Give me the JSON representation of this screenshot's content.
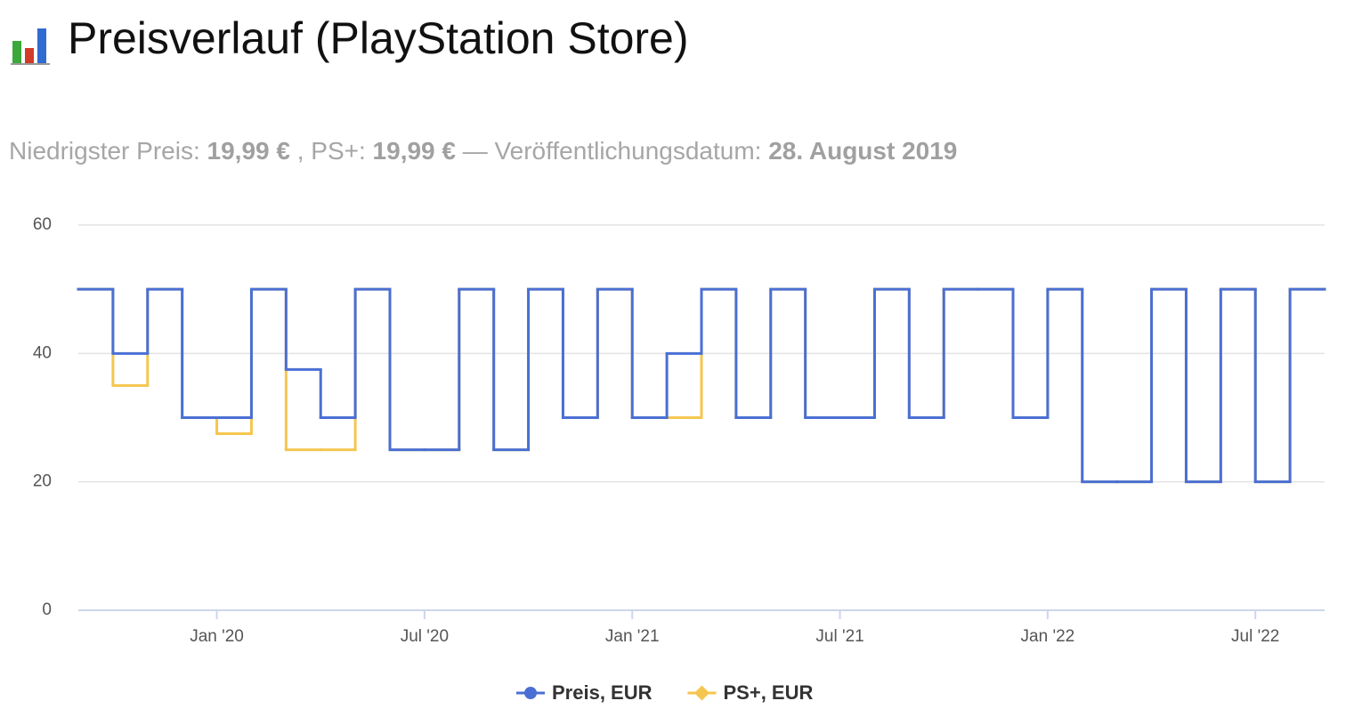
{
  "header": {
    "title": "Preisverlauf (PlayStation Store)",
    "subtitle": {
      "lowest_price_label": "Niedrigster Preis:",
      "lowest_price": "19,99 €",
      "ps_label": ", PS+:",
      "ps_price": "19,99 €",
      "date_label": "— Veröffentlichungsdatum:",
      "release_date": "28. August 2019"
    }
  },
  "chart_data": {
    "type": "step-line",
    "x": [
      "2019-09",
      "2019-10",
      "2019-11",
      "2019-12",
      "2020-01",
      "2020-02",
      "2020-03",
      "2020-04",
      "2020-05",
      "2020-06",
      "2020-07",
      "2020-08",
      "2020-09",
      "2020-10",
      "2020-11",
      "2020-12",
      "2021-01",
      "2021-02",
      "2021-03",
      "2021-04",
      "2021-05",
      "2021-06",
      "2021-07",
      "2021-08",
      "2021-09",
      "2021-10",
      "2021-11",
      "2021-12",
      "2022-01",
      "2022-02",
      "2022-03",
      "2022-04",
      "2022-05",
      "2022-06",
      "2022-07",
      "2022-08"
    ],
    "series": [
      {
        "name": "PS+, EUR",
        "color": "#f5c64f",
        "values": [
          50,
          35,
          50,
          30,
          27.5,
          50,
          25,
          25,
          50,
          25,
          25,
          50,
          25,
          50,
          30,
          50,
          30,
          30,
          50,
          30,
          50,
          30,
          30,
          50,
          30,
          50,
          50,
          30,
          50,
          20,
          20,
          50,
          20,
          50,
          20,
          50
        ]
      },
      {
        "name": "Preis, EUR",
        "color": "#4a6fd4",
        "values": [
          50,
          40,
          50,
          30,
          30,
          50,
          37.5,
          30,
          50,
          25,
          25,
          50,
          25,
          50,
          30,
          50,
          30,
          40,
          50,
          30,
          50,
          30,
          30,
          50,
          30,
          50,
          50,
          30,
          50,
          20,
          20,
          50,
          20,
          50,
          20,
          50
        ]
      }
    ],
    "xlim": [
      "2019-09",
      "2022-09"
    ],
    "xticks": [
      {
        "value": "2020-01",
        "label": "Jan '20"
      },
      {
        "value": "2020-07",
        "label": "Jul '20"
      },
      {
        "value": "2021-01",
        "label": "Jan '21"
      },
      {
        "value": "2021-07",
        "label": "Jul '21"
      },
      {
        "value": "2022-01",
        "label": "Jan '22"
      },
      {
        "value": "2022-07",
        "label": "Jul '22"
      }
    ],
    "ylim": [
      0,
      60
    ],
    "yticks": [
      0,
      20,
      40,
      60
    ],
    "grid": true,
    "legend": "bottom"
  }
}
